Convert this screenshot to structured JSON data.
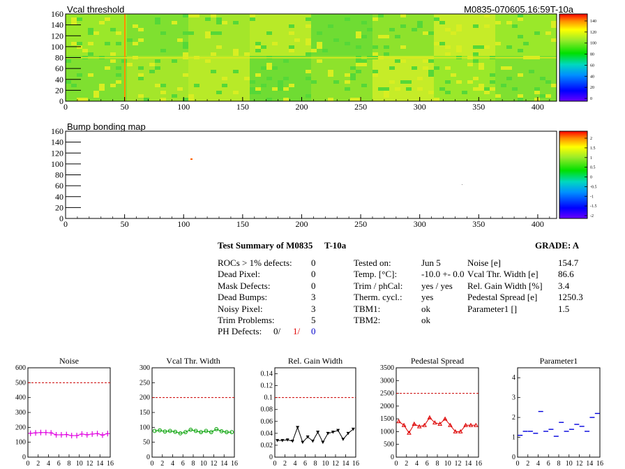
{
  "maps": {
    "top": {
      "title": "Vcal threshold",
      "id_label": "M0835-070605.16:59T-10a",
      "x_ticks": [
        "0",
        "50",
        "100",
        "150",
        "200",
        "250",
        "300",
        "350",
        "400"
      ],
      "y_ticks": [
        "0",
        "20",
        "40",
        "60",
        "80",
        "100",
        "120",
        "140",
        "160"
      ],
      "z_ticks": [
        "140",
        "120",
        "100",
        "80",
        "60",
        "40",
        "20",
        "0"
      ]
    },
    "bottom": {
      "title": "Bump bonding map",
      "x_ticks": [
        "0",
        "50",
        "100",
        "150",
        "200",
        "250",
        "300",
        "350",
        "400"
      ],
      "y_ticks": [
        "0",
        "20",
        "40",
        "60",
        "80",
        "100",
        "120",
        "140",
        "160"
      ],
      "z_ticks": [
        "2",
        "1.5",
        "1",
        "0.5",
        "0",
        "-0.5",
        "-1",
        "-1.5",
        "-2"
      ]
    }
  },
  "summary": {
    "title": "Test Summary of M0835",
    "temp_tag": "T-10a",
    "grade": "GRADE:  A",
    "defects": [
      {
        "label": "ROCs > 1% defects:",
        "value": "0"
      },
      {
        "label": "Dead Pixel:",
        "value": "0"
      },
      {
        "label": "Mask Defects:",
        "value": "0"
      },
      {
        "label": "Dead Bumps:",
        "value": "3"
      },
      {
        "label": "Noisy Pixel:",
        "value": "3"
      },
      {
        "label": "Trim Problems:",
        "value": "5"
      }
    ],
    "ph_defects": {
      "label": "PH Defects:",
      "v1": "0/",
      "v2": "1/",
      "v3": "0"
    },
    "conditions": [
      {
        "label": "Tested on:",
        "value": "Jun 5"
      },
      {
        "label": "Temp. [°C]:",
        "value": "-10.0 +- 0.0"
      },
      {
        "label": "Trim / phCal:",
        "value": "yes / yes"
      },
      {
        "label": "Therm. cycl.:",
        "value": "yes"
      },
      {
        "label": "TBM1:",
        "value": "ok"
      },
      {
        "label": "TBM2:",
        "value": "ok"
      }
    ],
    "results": [
      {
        "label": "Noise [e]",
        "value": "154.7"
      },
      {
        "label": "Vcal Thr. Width [e]",
        "value": "86.6"
      },
      {
        "label": "Rel. Gain Width [%]",
        "value": "3.4"
      },
      {
        "label": "Pedestal Spread [e]",
        "value": "1250.3"
      },
      {
        "label": "Parameter1 []",
        "value": "1.5"
      }
    ]
  },
  "colors": {
    "magenta": "#e000e0",
    "green": "#00a000",
    "black": "#000000",
    "red": "#dd0000",
    "blue": "#0000dd",
    "limit": "#cc0000"
  },
  "chart_data": [
    {
      "type": "line",
      "title": "Noise",
      "ylim": [
        0,
        600
      ],
      "yticks": [
        0,
        100,
        200,
        300,
        400,
        500,
        600
      ],
      "limit": 500,
      "marker": "plus",
      "color": "#e000e0",
      "x": [
        0,
        1,
        2,
        3,
        4,
        5,
        6,
        7,
        8,
        9,
        10,
        11,
        12,
        13,
        14,
        15
      ],
      "values": [
        160,
        163,
        165,
        165,
        163,
        150,
        150,
        152,
        145,
        145,
        155,
        150,
        155,
        158,
        148,
        158
      ]
    },
    {
      "type": "line",
      "title": "Vcal Thr. Width",
      "ylim": [
        0,
        300
      ],
      "yticks": [
        0,
        50,
        100,
        150,
        200,
        250,
        300
      ],
      "limit": 200,
      "marker": "circle",
      "color": "#00a000",
      "x": [
        0,
        1,
        2,
        3,
        4,
        5,
        6,
        7,
        8,
        9,
        10,
        11,
        12,
        13,
        14,
        15
      ],
      "values": [
        88,
        90,
        86,
        88,
        85,
        80,
        84,
        92,
        88,
        84,
        88,
        84,
        94,
        87,
        84,
        84
      ]
    },
    {
      "type": "line",
      "title": "Rel. Gain Width",
      "ylim": [
        0,
        0.15
      ],
      "yticks": [
        0,
        0.02,
        0.04,
        0.06,
        0.08,
        0.1,
        0.12,
        0.14
      ],
      "limit": 0.1,
      "marker": "triangle",
      "color": "#000000",
      "x": [
        0,
        1,
        2,
        3,
        4,
        5,
        6,
        7,
        8,
        9,
        10,
        11,
        12,
        13,
        14,
        15
      ],
      "values": [
        0.028,
        0.028,
        0.029,
        0.027,
        0.05,
        0.025,
        0.034,
        0.027,
        0.042,
        0.025,
        0.04,
        0.042,
        0.045,
        0.03,
        0.04,
        0.047
      ]
    },
    {
      "type": "line",
      "title": "Pedestal Spread",
      "ylim": [
        0,
        3500
      ],
      "yticks": [
        0,
        500,
        1000,
        1500,
        2000,
        2500,
        3000,
        3500
      ],
      "limit": 2500,
      "marker": "triangle-open",
      "color": "#dd0000",
      "x": [
        0,
        1,
        2,
        3,
        4,
        5,
        6,
        7,
        8,
        9,
        10,
        11,
        12,
        13,
        14,
        15
      ],
      "values": [
        1400,
        1250,
        950,
        1300,
        1200,
        1250,
        1550,
        1350,
        1300,
        1500,
        1250,
        1000,
        1000,
        1250,
        1250,
        1250
      ]
    },
    {
      "type": "scatter",
      "title": "Parameter1",
      "ylim": [
        0,
        4.5
      ],
      "yticks": [
        0,
        1,
        2,
        3,
        4
      ],
      "marker": "dash",
      "color": "#0000dd",
      "x": [
        0,
        1,
        2,
        3,
        4,
        5,
        6,
        7,
        8,
        9,
        10,
        11,
        12,
        13,
        14,
        15
      ],
      "values": [
        1.1,
        1.3,
        1.3,
        1.2,
        2.3,
        1.3,
        1.4,
        1.05,
        1.75,
        1.3,
        1.4,
        1.65,
        1.55,
        1.3,
        2.0,
        2.2
      ]
    }
  ],
  "small_x_ticks": [
    "0",
    "2",
    "4",
    "6",
    "8",
    "10",
    "12",
    "14",
    "16"
  ]
}
